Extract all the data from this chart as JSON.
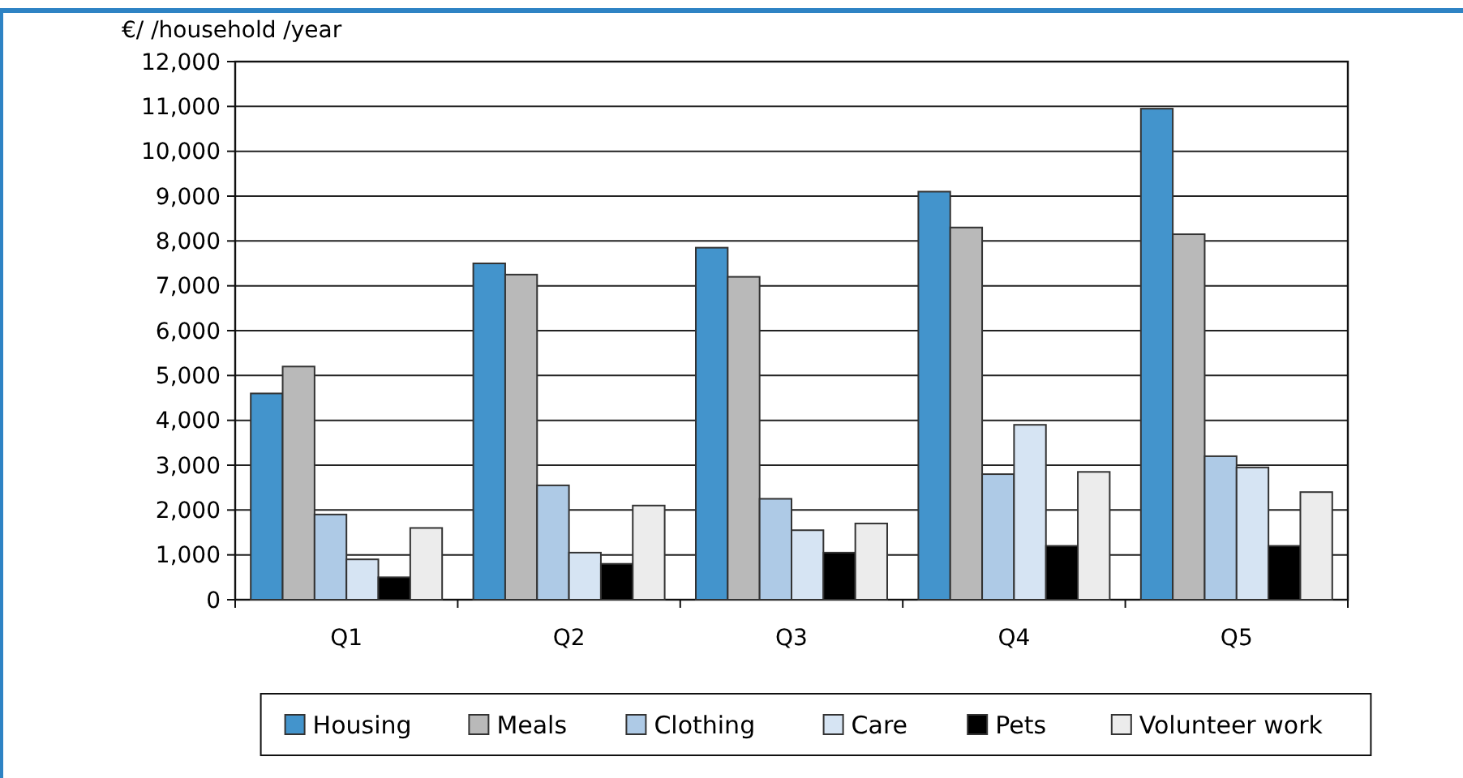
{
  "chart_data": {
    "type": "bar",
    "ylabel": "€/ /household /year",
    "categories": [
      "Q1",
      "Q2",
      "Q3",
      "Q4",
      "Q5"
    ],
    "series": [
      {
        "name": "Housing",
        "color": "#4394cc",
        "values": [
          4600,
          7500,
          7850,
          9100,
          10950
        ]
      },
      {
        "name": "Meals",
        "color": "#b9b9b9",
        "values": [
          5200,
          7250,
          7200,
          8300,
          8150
        ]
      },
      {
        "name": "Clothing",
        "color": "#aecae6",
        "values": [
          1900,
          2550,
          2250,
          2800,
          3200
        ]
      },
      {
        "name": "Care",
        "color": "#d6e4f3",
        "values": [
          900,
          1050,
          1550,
          3900,
          2950
        ]
      },
      {
        "name": "Pets",
        "color": "#000000",
        "values": [
          500,
          800,
          1050,
          1200,
          1200
        ]
      },
      {
        "name": "Volunteer work",
        "color": "#ececec",
        "values": [
          1600,
          2100,
          1700,
          2850,
          2400
        ]
      }
    ],
    "ylim": [
      0,
      12000
    ],
    "yticks": [
      0,
      {
        "value": 1000,
        "label": "1,000"
      },
      {
        "value": 2000,
        "label": "2,000"
      },
      {
        "value": 3000,
        "label": "3,000"
      },
      {
        "value": 4000,
        "label": "4,000"
      },
      {
        "value": 5000,
        "label": "5,000"
      },
      {
        "value": 6000,
        "label": "6,000"
      },
      {
        "value": 7000,
        "label": "7,000"
      },
      {
        "value": 8000,
        "label": "8,000"
      },
      {
        "value": 9000,
        "label": "9,000"
      },
      {
        "value": 10000,
        "label": "10,000"
      },
      {
        "value": 11000,
        "label": "11,000"
      },
      {
        "value": 12000,
        "label": "12,000"
      }
    ],
    "grid": "y",
    "legend": "bottom"
  }
}
